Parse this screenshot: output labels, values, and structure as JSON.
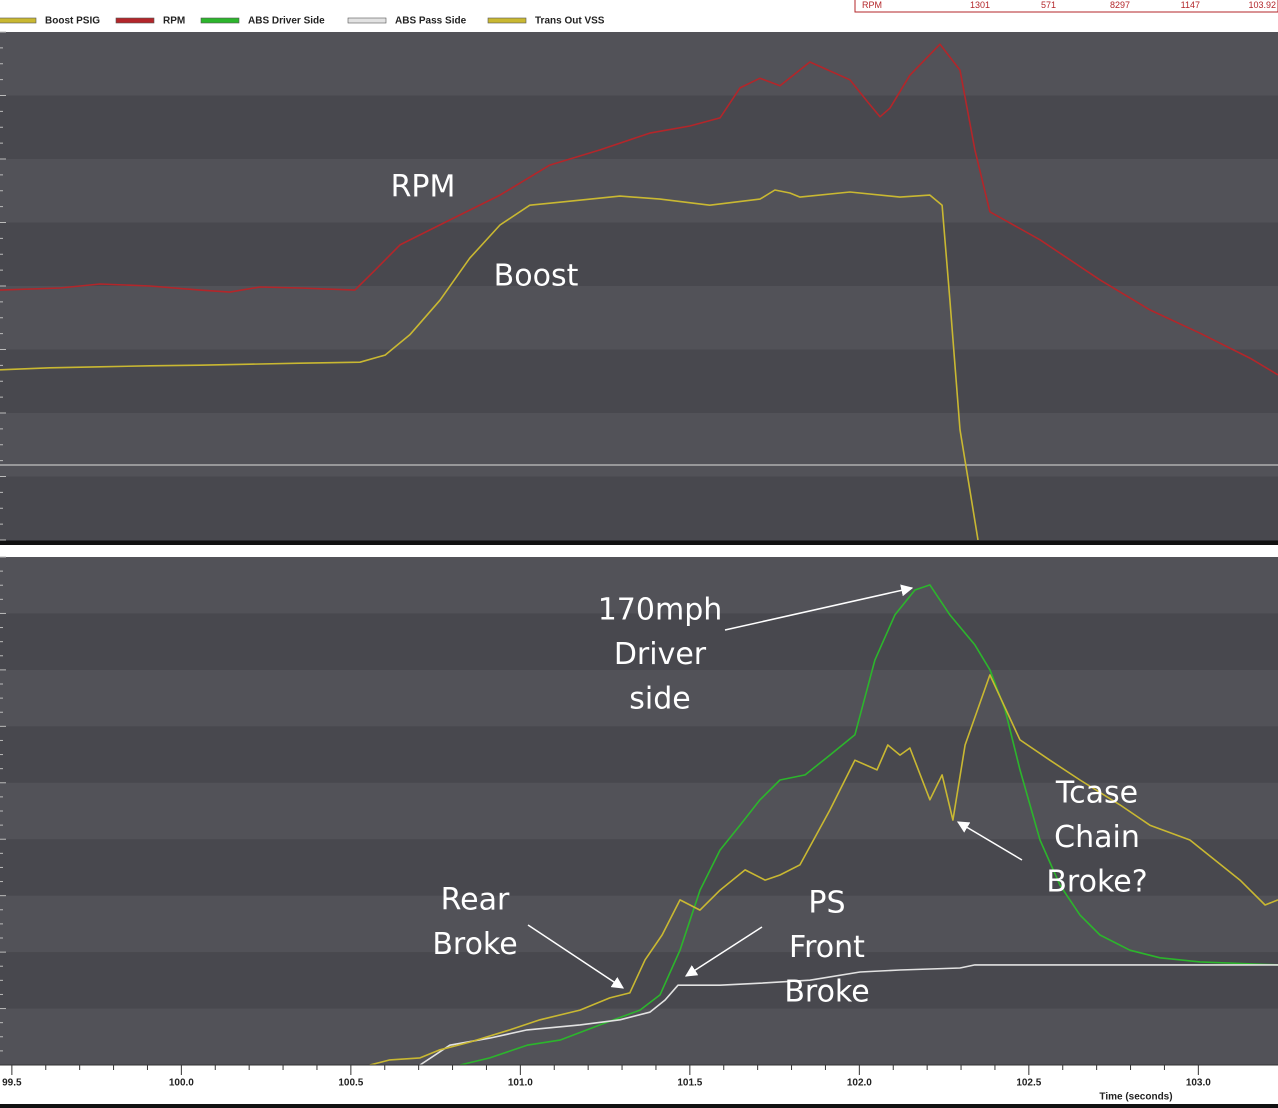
{
  "readout": {
    "label": "RPM",
    "values": [
      1301,
      571,
      8297,
      1147,
      103.92
    ]
  },
  "chart_data": [
    {
      "type": "line",
      "xlim": [
        99.465,
        103.235
      ],
      "ylim": [
        0,
        100
      ],
      "annotations": [
        [
          "RPM"
        ],
        [
          "Boost"
        ]
      ],
      "series": [
        {
          "name": "Boost PSIG",
          "color": "#c9b832",
          "x": [
            99.465,
            99.612,
            99.76,
            99.907,
            100.055,
            100.202,
            100.35,
            100.527,
            100.601,
            100.674,
            100.763,
            100.851,
            100.94,
            101.028,
            101.117,
            101.294,
            101.412,
            101.559,
            101.707,
            101.751,
            101.795,
            101.825,
            101.972,
            102.12,
            102.208,
            102.244,
            102.267,
            102.297,
            102.326,
            102.35
          ],
          "values": [
            33.5,
            33.9,
            34.1,
            34.3,
            34.4,
            34.6,
            34.8,
            35.0,
            36.4,
            40.4,
            47.2,
            55.5,
            62.0,
            65.9,
            66.5,
            67.7,
            67.1,
            65.9,
            67.1,
            68.9,
            68.3,
            67.5,
            68.5,
            67.5,
            67.9,
            65.9,
            47.2,
            21.7,
            9.8,
            0
          ]
        },
        {
          "name": "RPM",
          "color": "#b3262a",
          "x": [
            99.465,
            99.642,
            99.76,
            99.907,
            100.055,
            100.143,
            100.232,
            100.35,
            100.512,
            100.571,
            100.645,
            100.792,
            100.94,
            101.087,
            101.235,
            101.382,
            101.5,
            101.589,
            101.648,
            101.707,
            101.766,
            101.854,
            101.972,
            102.025,
            102.061,
            102.09,
            102.149,
            102.238,
            102.297,
            102.341,
            102.385,
            102.533,
            102.71,
            102.857,
            103.005,
            103.152,
            103.235
          ],
          "values": [
            49.2,
            49.6,
            50.4,
            50.0,
            49.2,
            48.8,
            49.8,
            49.6,
            49.2,
            53.1,
            58.1,
            63.0,
            67.9,
            73.8,
            76.8,
            80.1,
            81.5,
            83.1,
            89.0,
            90.9,
            89.4,
            94.1,
            90.6,
            86.2,
            83.3,
            85.0,
            91.5,
            97.6,
            92.5,
            76.8,
            64.6,
            59.1,
            51.2,
            45.3,
            40.7,
            35.8,
            32.5
          ]
        }
      ]
    },
    {
      "type": "line",
      "xlim": [
        99.465,
        103.235
      ],
      "ylim": [
        0,
        100
      ],
      "xticks": [
        99.5,
        {
          "value": 100,
          "label": "100.0"
        },
        100.5,
        {
          "value": 101,
          "label": "101.0"
        },
        101.5,
        {
          "value": 102,
          "label": "102.0"
        },
        102.5,
        {
          "value": 103,
          "label": "103.0"
        }
      ],
      "xlabel": "Time (seconds)",
      "annotations": [
        [
          "170mph",
          "Driver",
          "side"
        ],
        [
          "Rear",
          "Broke"
        ],
        [
          "PS",
          "Front",
          "Broke"
        ],
        [
          "Tcase",
          "Chain",
          "Broke?"
        ]
      ],
      "series": [
        {
          "name": "ABS Driver Side",
          "color": "#2cb52c",
          "x": [
            100.822,
            100.91,
            101.02,
            101.117,
            101.235,
            101.353,
            101.412,
            101.471,
            101.53,
            101.589,
            101.648,
            101.707,
            101.766,
            101.84,
            101.913,
            101.987,
            102.046,
            102.105,
            102.164,
            102.208,
            102.267,
            102.341,
            102.385,
            102.43,
            102.474,
            102.533,
            102.592,
            102.651,
            102.71,
            102.798,
            102.887,
            103.005,
            103.235
          ],
          "values": [
            0,
            1.4,
            3.9,
            4.9,
            7.9,
            10.8,
            13.8,
            22.6,
            34.4,
            42.3,
            47.2,
            52.2,
            56.1,
            57.1,
            61.0,
            65.0,
            79.7,
            88.6,
            93.5,
            94.5,
            88.6,
            82.7,
            77.8,
            69.9,
            58.1,
            44.3,
            35.4,
            29.5,
            25.6,
            22.6,
            21.1,
            20.3,
            19.7
          ]
        },
        {
          "name": "ABS Pass Side",
          "color": "#e2e2e2",
          "x": [
            100.704,
            100.792,
            100.91,
            101.02,
            101.176,
            101.294,
            101.382,
            101.427,
            101.465,
            101.589,
            101.707,
            101.854,
            102.002,
            102.12,
            102.297,
            102.341,
            102.415,
            103.235
          ],
          "values": [
            0,
            3.9,
            5.3,
            6.9,
            7.9,
            8.9,
            10.4,
            12.8,
            15.7,
            15.7,
            16.1,
            16.7,
            18.3,
            18.7,
            19.1,
            19.7,
            19.7,
            19.7
          ]
        },
        {
          "name": "Trans Out VSS",
          "color": "#c9b832",
          "x": [
            100.556,
            100.615,
            100.704,
            100.763,
            100.851,
            100.969,
            101.058,
            101.176,
            101.264,
            101.323,
            101.368,
            101.418,
            101.471,
            101.53,
            101.589,
            101.663,
            101.722,
            101.766,
            101.825,
            101.913,
            101.987,
            102.052,
            102.084,
            102.12,
            102.149,
            102.208,
            102.244,
            102.276,
            102.312,
            102.385,
            102.474,
            102.562,
            102.651,
            102.769,
            102.857,
            102.975,
            103.123,
            103.197,
            103.235
          ],
          "values": [
            0,
            1.0,
            1.4,
            3.0,
            4.5,
            6.9,
            8.9,
            10.8,
            13.2,
            14.2,
            20.7,
            25.6,
            32.5,
            30.5,
            34.4,
            38.4,
            36.4,
            37.4,
            39.4,
            50.2,
            60.0,
            58.1,
            63.0,
            61.0,
            62.4,
            52.2,
            57.1,
            48.2,
            63.0,
            76.8,
            64.0,
            60.0,
            56.1,
            51.2,
            47.2,
            44.3,
            36.4,
            31.5,
            32.5
          ]
        }
      ]
    }
  ]
}
